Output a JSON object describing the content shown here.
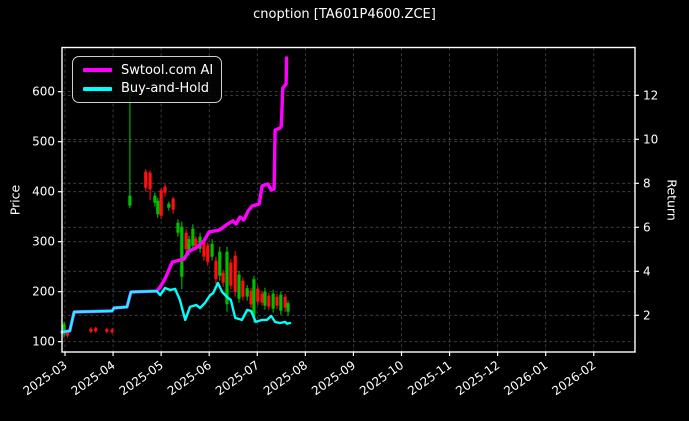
{
  "title": "cnoption [TA601P4600.ZCE]",
  "colors": {
    "background": "#000000",
    "text": "#ffffff",
    "grid": "#9a9a9a",
    "spine": "#ffffff",
    "candle_up": "#00bf00",
    "candle_down": "#ff0f0f",
    "ai_line": "#ff00ff",
    "bh_line": "#00ffff"
  },
  "legend": [
    {
      "label": "Swtool.com AI",
      "color": "#ff00ff"
    },
    {
      "label": "Buy-and-Hold",
      "color": "#00ffff"
    }
  ],
  "chart_data": {
    "type": "line",
    "title": "cnoption [TA601P4600.ZCE]",
    "x_axis": {
      "ticks": [
        "2025-03",
        "2025-04",
        "2025-05",
        "2025-06",
        "2025-07",
        "2025-08",
        "2025-09",
        "2025-10",
        "2025-11",
        "2025-12",
        "2026-01",
        "2026-02"
      ]
    },
    "y_left": {
      "label": "Price",
      "ticks": [
        100,
        200,
        300,
        400,
        500,
        600
      ],
      "range": [
        79,
        688
      ]
    },
    "y_right": {
      "label": "Return",
      "ticks": [
        2,
        4,
        6,
        8,
        10,
        12
      ],
      "range": [
        0.33,
        14.17
      ]
    },
    "grid": true,
    "legend_position": "upper-left",
    "series": [
      {
        "name": "Swtool.com AI",
        "axis": "return",
        "color": "#ff00ff",
        "x": [
          -0.06,
          0.1,
          0.19,
          0.98,
          1.02,
          1.29,
          1.37,
          1.91,
          1.98,
          2.04,
          2.1,
          2.23,
          2.48,
          2.56,
          2.75,
          2.89,
          3.0,
          3.22,
          3.35,
          3.49,
          3.56,
          3.64,
          3.72,
          3.81,
          3.89,
          4.04,
          4.1,
          4.22,
          4.29,
          4.35,
          4.37,
          4.47,
          4.5,
          4.53,
          4.58,
          4.6,
          4.61
        ],
        "y": [
          1.24,
          1.29,
          2.15,
          2.2,
          2.33,
          2.38,
          3.06,
          3.1,
          3.29,
          3.51,
          3.74,
          4.42,
          4.56,
          4.88,
          5.1,
          5.38,
          5.79,
          5.88,
          6.1,
          6.29,
          6.15,
          6.47,
          6.33,
          6.74,
          6.97,
          7.06,
          7.88,
          7.97,
          7.7,
          7.74,
          10.42,
          10.51,
          10.6,
          12.33,
          12.47,
          12.5,
          13.7
        ]
      },
      {
        "name": "Buy-and-Hold",
        "axis": "return",
        "color": "#00ffff",
        "x": [
          -0.06,
          0.1,
          0.19,
          0.98,
          1.02,
          1.29,
          1.37,
          1.91,
          1.98,
          2.08,
          2.19,
          2.29,
          2.39,
          2.5,
          2.6,
          2.73,
          2.81,
          2.91,
          3.02,
          3.08,
          3.18,
          3.27,
          3.37,
          3.45,
          3.54,
          3.68,
          3.79,
          3.87,
          3.97,
          4.1,
          4.2,
          4.29,
          4.37,
          4.47,
          4.58,
          4.62,
          4.68
        ],
        "y": [
          1.24,
          1.29,
          2.15,
          2.2,
          2.33,
          2.38,
          3.06,
          3.1,
          2.92,
          3.24,
          3.15,
          3.2,
          2.7,
          1.79,
          2.38,
          2.47,
          2.33,
          2.56,
          2.92,
          3.01,
          3.47,
          3.06,
          2.83,
          2.7,
          1.88,
          1.79,
          2.24,
          2.2,
          1.7,
          1.79,
          1.79,
          1.97,
          1.7,
          1.65,
          1.7,
          1.62,
          1.65
        ]
      }
    ],
    "candles_axis": "price",
    "candles_format": [
      "month_offset",
      "open",
      "high",
      "low",
      "close"
    ],
    "candles": [
      [
        -0.02,
        115,
        140,
        108,
        135
      ],
      [
        0.05,
        122,
        124,
        108,
        112
      ],
      [
        0.54,
        126,
        129,
        117,
        120
      ],
      [
        0.64,
        127,
        130,
        118,
        121
      ],
      [
        0.87,
        125,
        128,
        117,
        120
      ],
      [
        0.98,
        124,
        127,
        116,
        119
      ],
      [
        1.35,
        372,
        613,
        367,
        392
      ],
      [
        1.68,
        440,
        445,
        400,
        408
      ],
      [
        1.77,
        438,
        442,
        383,
        405
      ],
      [
        1.87,
        378,
        398,
        370,
        392
      ],
      [
        1.93,
        355,
        388,
        348,
        382
      ],
      [
        2.0,
        403,
        408,
        345,
        352
      ],
      [
        2.08,
        410,
        415,
        390,
        398
      ],
      [
        2.16,
        368,
        380,
        362,
        376
      ],
      [
        2.25,
        386,
        390,
        356,
        364
      ],
      [
        2.35,
        318,
        345,
        310,
        338
      ],
      [
        2.43,
        230,
        340,
        205,
        330
      ],
      [
        2.52,
        318,
        325,
        275,
        285
      ],
      [
        2.58,
        280,
        312,
        272,
        305
      ],
      [
        2.66,
        292,
        335,
        285,
        326
      ],
      [
        2.72,
        306,
        311,
        284,
        291
      ],
      [
        2.81,
        286,
        318,
        278,
        310
      ],
      [
        2.89,
        302,
        308,
        262,
        270
      ],
      [
        2.97,
        292,
        298,
        252,
        260
      ],
      [
        3.06,
        270,
        305,
        262,
        296
      ],
      [
        3.14,
        262,
        270,
        215,
        225
      ],
      [
        3.22,
        232,
        290,
        222,
        280
      ],
      [
        3.29,
        238,
        244,
        210,
        218
      ],
      [
        3.37,
        175,
        290,
        160,
        280
      ],
      [
        3.45,
        258,
        265,
        205,
        212
      ],
      [
        3.54,
        272,
        281,
        190,
        200
      ],
      [
        3.62,
        186,
        242,
        178,
        234
      ],
      [
        3.7,
        222,
        228,
        183,
        190
      ],
      [
        3.79,
        190,
        213,
        182,
        207
      ],
      [
        3.87,
        202,
        208,
        168,
        175
      ],
      [
        3.93,
        150,
        232,
        138,
        225
      ],
      [
        4.01,
        206,
        212,
        173,
        180
      ],
      [
        4.1,
        196,
        202,
        172,
        178
      ],
      [
        4.16,
        172,
        208,
        164,
        200
      ],
      [
        4.24,
        192,
        198,
        163,
        170
      ],
      [
        4.33,
        166,
        204,
        158,
        196
      ],
      [
        4.41,
        190,
        196,
        165,
        172
      ],
      [
        4.49,
        162,
        200,
        154,
        194
      ],
      [
        4.58,
        190,
        195,
        160,
        168
      ],
      [
        4.64,
        160,
        182,
        152,
        177
      ]
    ]
  }
}
